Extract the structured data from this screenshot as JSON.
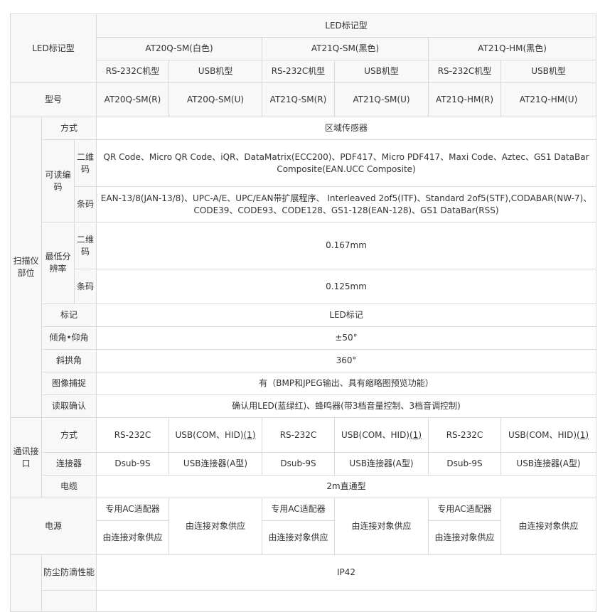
{
  "header": {
    "top_left": "LED标记型",
    "group": "LED标记型",
    "models": [
      "AT20Q-SM(白色)",
      "AT21Q-SM(黑色)",
      "AT21Q-HM(黑色)"
    ],
    "variants": [
      "RS-232C机型",
      "USB机型",
      "RS-232C机型",
      "USB机型",
      "RS-232C机型",
      "USB机型"
    ],
    "model_label": "型号",
    "model_numbers": [
      "AT20Q-SM(R)",
      "AT20Q-SM(U)",
      "AT21Q-SM(R)",
      "AT21Q-SM(U)",
      "AT21Q-HM(R)",
      "AT21Q-HM(U)"
    ]
  },
  "scanner": {
    "label": "扫描仪部位",
    "method_label": "方式",
    "method_value": "区域传感器",
    "readable_label": "可读编码",
    "twod_label": "二维码",
    "twod_value": "QR Code、Micro QR Code、iQR、DataMatrix(ECC200)、PDF417、Micro PDF417、Maxi Code、Aztec、GS1 DataBar Composite(EAN.UCC Composite)",
    "bar_label": "条码",
    "bar_value": "EAN-13/8(JAN-13/8)、UPC-A/E、UPC/EAN带扩展程序、 Interleaved 2of5(ITF)、Standard 2of5(STF),CODABAR(NW-7)、CODE39、CODE93、CODE128、GS1-128(EAN-128)、GS1 DataBar(RSS)",
    "minres_label": "最低分辨率",
    "minres_2d_label": "二维码",
    "minres_2d": "0.167mm",
    "minres_bar_label": "条码",
    "minres_bar": "0.125mm",
    "mark_label": "标记",
    "mark_value": "LED标记",
    "angle_label": "倾角•仰角",
    "angle_value": "±50°",
    "skew_label": "斜拱角",
    "skew_value": "360°",
    "capture_label": "图像捕捉",
    "capture_value": "有（BMP和JPEG输出、具有缩略图预览功能）",
    "confirm_label": "读取确认",
    "confirm_value": "确认用LED(蓝绿红)、蜂鸣器(带3档音量控制、3档音调控制)"
  },
  "comm": {
    "label": "通讯接口",
    "method_label": "方式",
    "rs": "RS-232C",
    "usb": "USB(COM、HID)",
    "note_link": "(1)",
    "connector_label": "连接器",
    "dsub": "Dsub-9S",
    "usb_conn": "USB连接器(A型)",
    "cable_label": "电缆",
    "cable_value": "2m直通型"
  },
  "power": {
    "label": "电源",
    "ac": "专用AC适配器",
    "supply": "由连接对象供应"
  },
  "env": {
    "dust_label": "防尘防滴性能",
    "dust_value": "IP42"
  }
}
